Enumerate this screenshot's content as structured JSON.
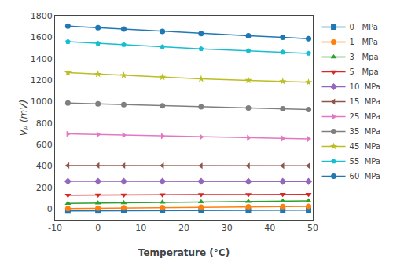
{
  "chart_data": {
    "type": "line",
    "x_label": "Temperature (°C)",
    "y_label": "Vₚ (mV)",
    "x": [
      -7,
      0,
      6,
      15,
      24,
      35,
      43,
      49
    ],
    "series": [
      {
        "name": "0   MPa",
        "marker": "square",
        "values": [
          -18,
          -17,
          -16,
          -14,
          -13,
          -12,
          -11,
          -10
        ]
      },
      {
        "name": "1   MPa",
        "marker": "circle",
        "values": [
          5,
          8,
          11,
          14,
          17,
          20,
          23,
          25
        ]
      },
      {
        "name": "3   Mpa",
        "marker": "triangle-up",
        "values": [
          52,
          55,
          58,
          62,
          66,
          70,
          73,
          76
        ]
      },
      {
        "name": "5   Mpa",
        "marker": "triangle-down",
        "values": [
          128,
          130,
          131,
          132,
          133,
          134,
          135,
          136
        ]
      },
      {
        "name": "10  MPa",
        "marker": "diamond",
        "values": [
          258,
          258,
          258,
          258,
          258,
          257,
          257,
          257
        ]
      },
      {
        "name": "15  MPa",
        "marker": "triangle-left",
        "values": [
          405,
          405,
          404,
          404,
          403,
          403,
          402,
          402
        ]
      },
      {
        "name": "25  MPa",
        "marker": "triangle-right",
        "values": [
          700,
          694,
          688,
          679,
          671,
          663,
          657,
          652
        ]
      },
      {
        "name": "35  MPa",
        "marker": "circle",
        "values": [
          987,
          979,
          972,
          962,
          952,
          942,
          934,
          927
        ]
      },
      {
        "name": "45  MPa",
        "marker": "star",
        "values": [
          1270,
          1256,
          1245,
          1228,
          1212,
          1198,
          1188,
          1180
        ]
      },
      {
        "name": "55  MPa",
        "marker": "pentagon",
        "values": [
          1558,
          1542,
          1530,
          1510,
          1491,
          1473,
          1460,
          1450
        ]
      },
      {
        "name": "60  MPa",
        "marker": "circle",
        "values": [
          1703,
          1688,
          1675,
          1654,
          1634,
          1614,
          1599,
          1587
        ]
      }
    ],
    "xlim": [
      -10,
      50
    ],
    "xticks": [
      -10,
      0,
      10,
      20,
      30,
      40,
      50
    ],
    "ylim": [
      -100,
      1800
    ],
    "yticks": [
      0,
      200,
      400,
      600,
      800,
      1000,
      1200,
      1400,
      1600,
      1800
    ],
    "grid": false,
    "legend": "upper right"
  }
}
